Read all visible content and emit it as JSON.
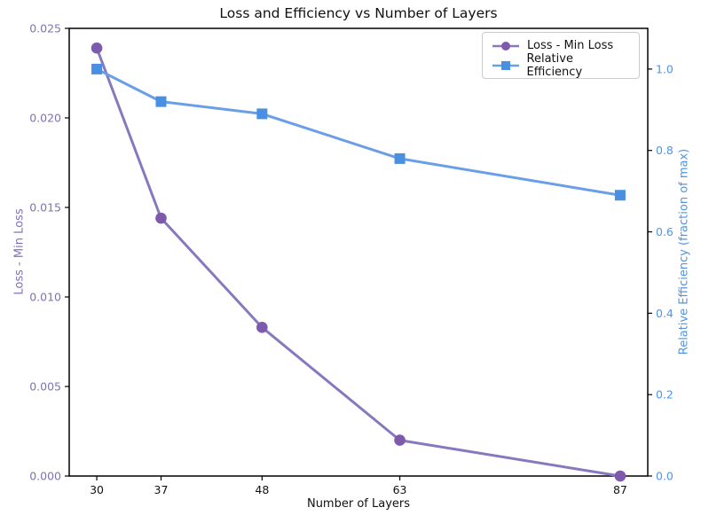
{
  "chart_data": {
    "type": "line",
    "title": "Loss and Efficiency vs Number of Layers",
    "xlabel": "Number of Layers",
    "x": [
      30,
      37,
      48,
      63,
      87
    ],
    "x_tick_labels": [
      "30",
      "37",
      "48",
      "63",
      "87"
    ],
    "xlim": [
      27,
      90
    ],
    "left_axis": {
      "label": "Loss - Min Loss",
      "color": "#8172b3",
      "tick_labels": [
        "0.000",
        "0.005",
        "0.010",
        "0.015",
        "0.020",
        "0.025"
      ],
      "range": [
        0,
        0.025
      ]
    },
    "right_axis": {
      "label": "Relative Efficiency (fraction of max)",
      "color": "#4f95e8",
      "tick_labels": [
        "0.0",
        "0.2",
        "0.4",
        "0.6",
        "0.8",
        "1.0"
      ],
      "range": [
        0,
        1.1
      ]
    },
    "series": [
      {
        "name": "Loss - Min Loss",
        "axis": "left",
        "marker": "circle",
        "color": "#8878bd",
        "marker_color": "#7e5aad",
        "values": [
          0.0239,
          0.0144,
          0.0083,
          0.002,
          0.0
        ]
      },
      {
        "name": "Relative Efficiency",
        "axis": "right",
        "marker": "square",
        "color": "#6a9fe8",
        "marker_color": "#4a90e2",
        "values": [
          1.0,
          0.92,
          0.89,
          0.78,
          0.69
        ]
      }
    ],
    "legend": {
      "position": "top-right",
      "entries": [
        "Loss - Min Loss",
        "Relative Efficiency"
      ]
    },
    "grid": false,
    "frame_color": "#000000"
  }
}
